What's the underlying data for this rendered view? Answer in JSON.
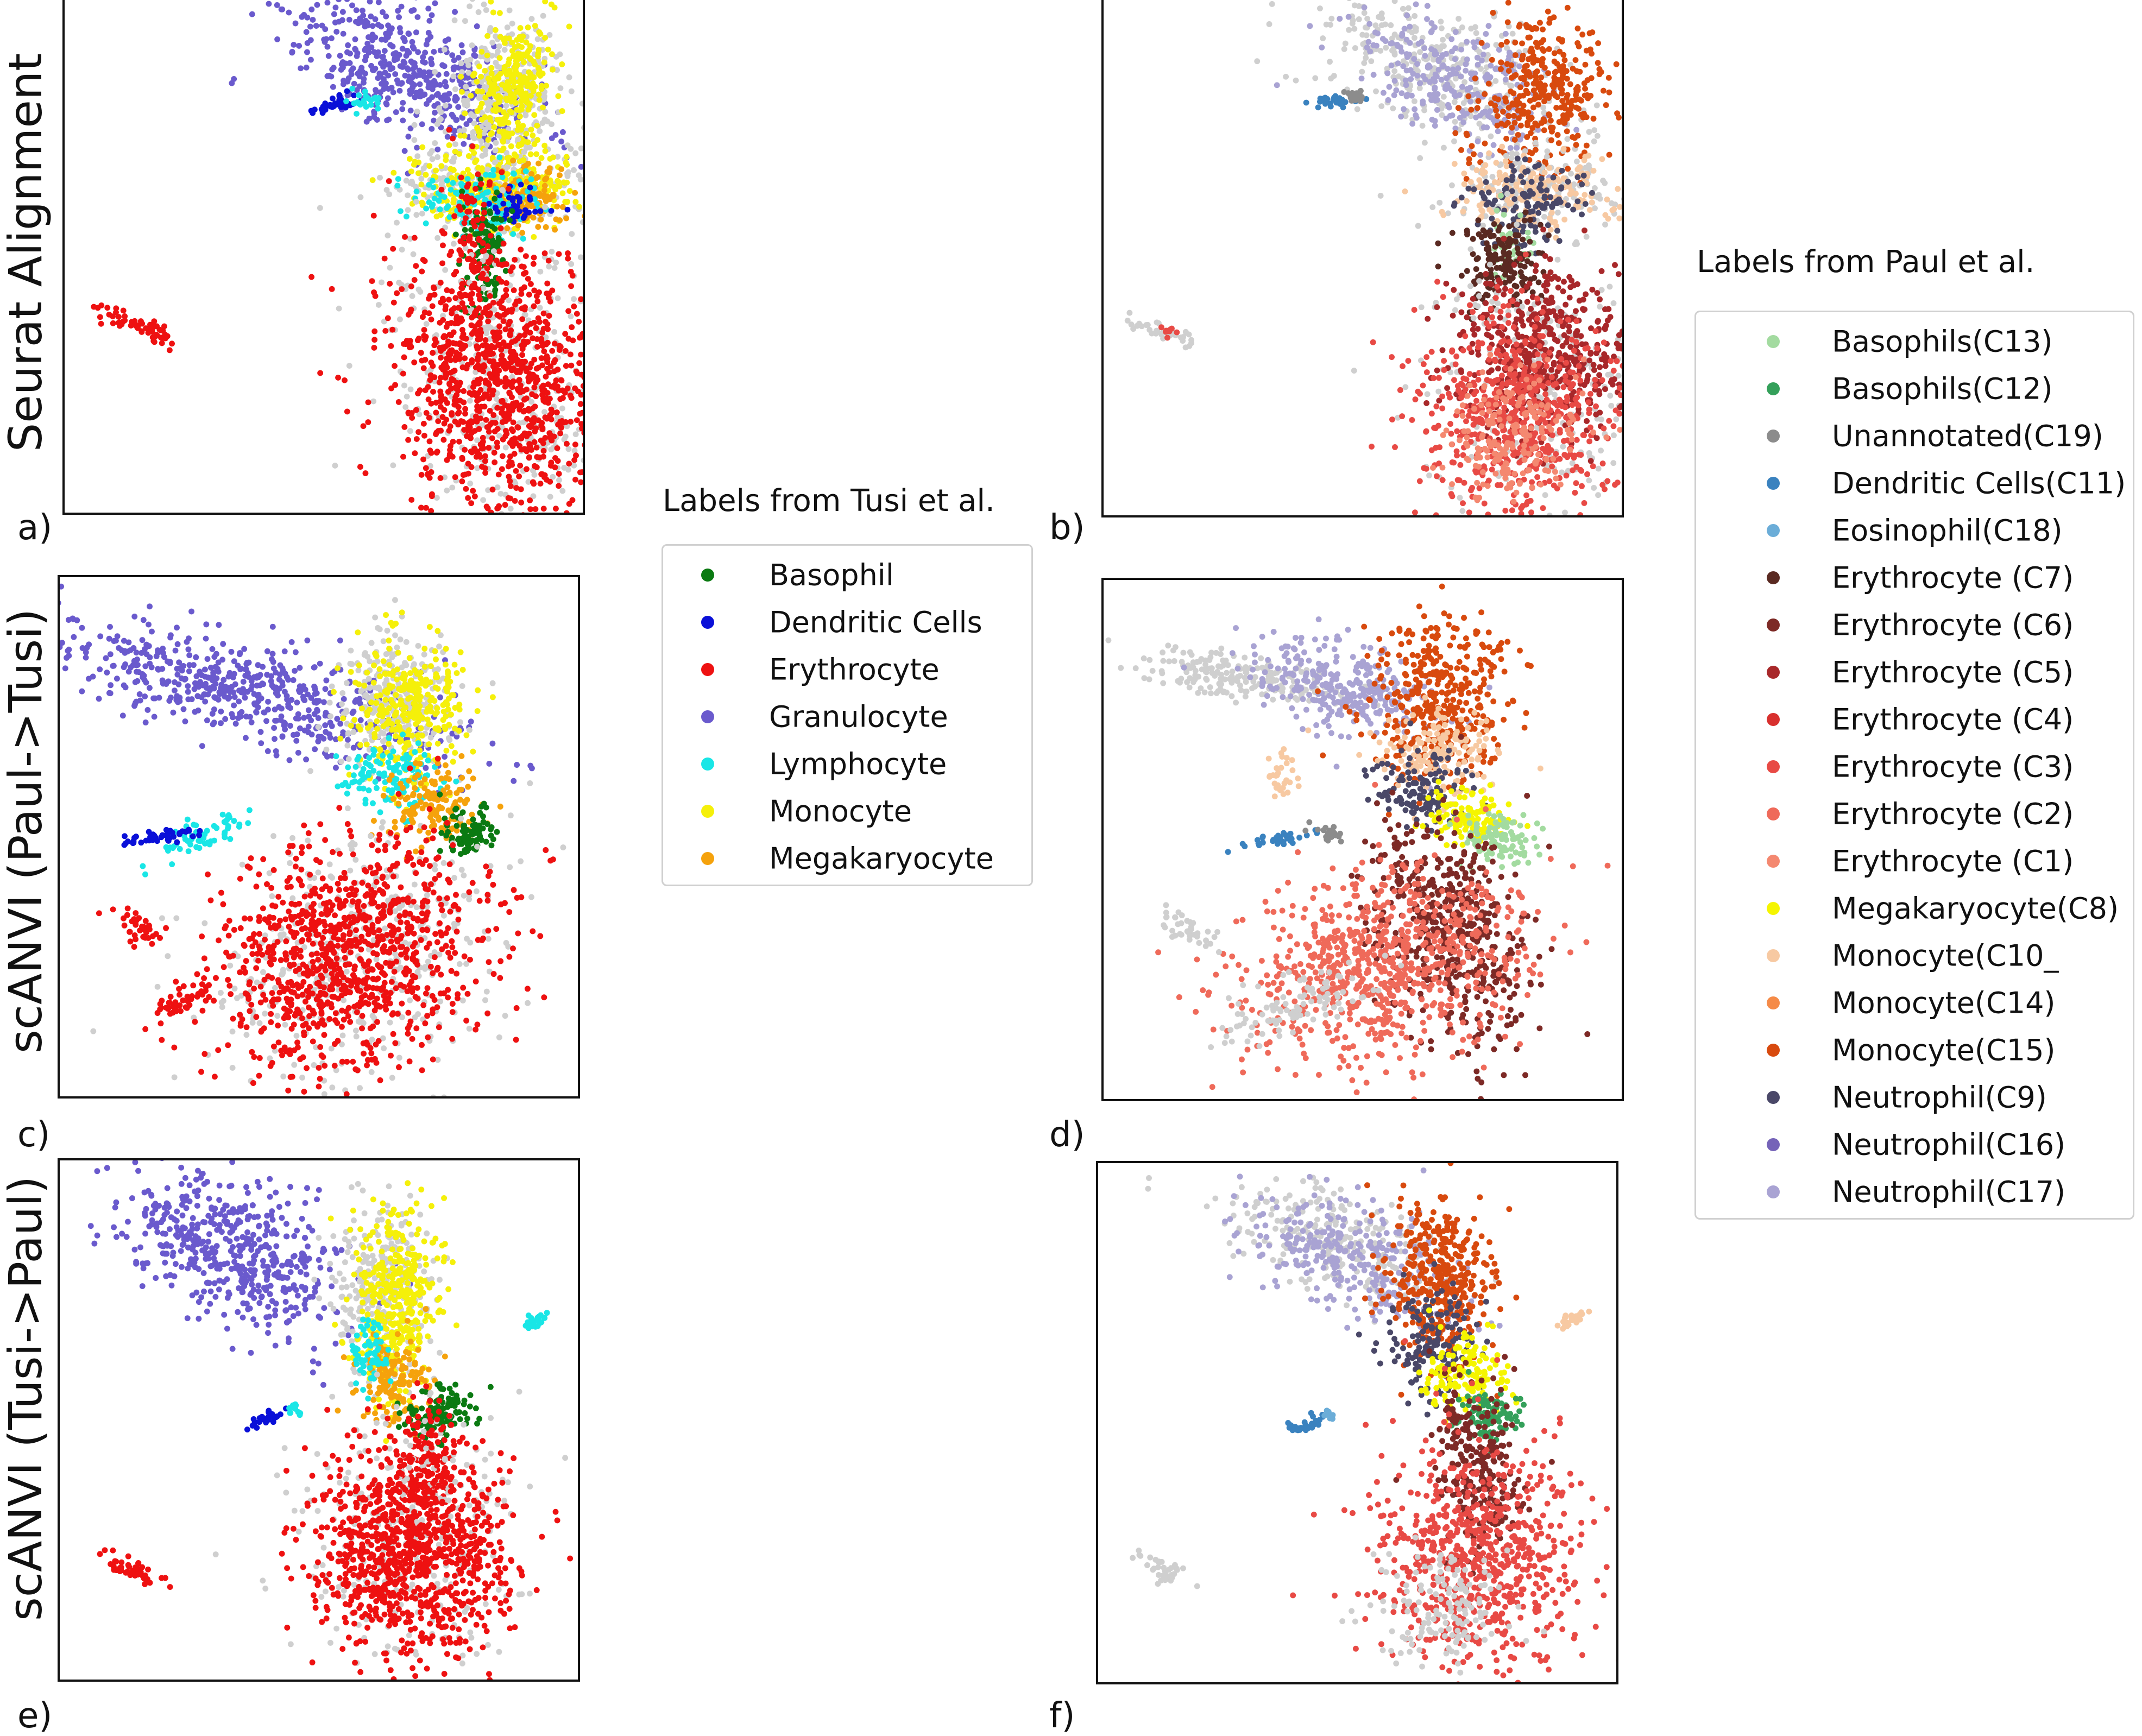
{
  "row_labels": [
    "Seurat Alignment",
    "scANVI (Paul->Tusi)",
    "scANVI (Tusi->Paul)"
  ],
  "panel_letters": [
    "a)",
    "b)",
    "c)",
    "d)",
    "e)",
    "f)"
  ],
  "legend_tusi": {
    "title": "Labels from Tusi et al.",
    "items": [
      {
        "label": "Basophil",
        "color": "#0b7a12"
      },
      {
        "label": "Dendritic Cells",
        "color": "#0a10d8"
      },
      {
        "label": "Erythrocyte",
        "color": "#ee1111"
      },
      {
        "label": "Granulocyte",
        "color": "#6a5acd"
      },
      {
        "label": "Lymphocyte",
        "color": "#19e6e6"
      },
      {
        "label": "Monocyte",
        "color": "#f5f00a"
      },
      {
        "label": "Megakaryocyte",
        "color": "#f5a20c"
      }
    ]
  },
  "legend_paul": {
    "title": "Labels from Paul et al.",
    "items": [
      {
        "label": "Basophils(C13)",
        "color": "#a3dba0"
      },
      {
        "label": "Basophils(C12)",
        "color": "#34a05a"
      },
      {
        "label": "Unannotated(C19)",
        "color": "#8c8c8c"
      },
      {
        "label": "Dendritic Cells(C11)",
        "color": "#3a82bf"
      },
      {
        "label": "Eosinophil(C18)",
        "color": "#6badd8"
      },
      {
        "label": "Erythrocyte (C7)",
        "color": "#5a2a22"
      },
      {
        "label": "Erythrocyte (C6)",
        "color": "#7d2a26"
      },
      {
        "label": "Erythrocyte (C5)",
        "color": "#a8282a"
      },
      {
        "label": "Erythrocyte (C4)",
        "color": "#d8302e"
      },
      {
        "label": "Erythrocyte (C3)",
        "color": "#e84a45"
      },
      {
        "label": "Erythrocyte (C2)",
        "color": "#ef6a5a"
      },
      {
        "label": "Erythrocyte (C1)",
        "color": "#f48870"
      },
      {
        "label": "Megakaryocyte(C8)",
        "color": "#f5f500"
      },
      {
        "label": "Monocyte(C10_",
        "color": "#f7c9a2"
      },
      {
        "label": "Monocyte(C14)",
        "color": "#f58b48"
      },
      {
        "label": "Monocyte(C15)",
        "color": "#d84a0e"
      },
      {
        "label": "Neutrophil(C9)",
        "color": "#4a4868"
      },
      {
        "label": "Neutrophil(C16)",
        "color": "#7563b8"
      },
      {
        "label": "Neutrophil(C17)",
        "color": "#a9a3d3"
      }
    ]
  },
  "chart_data": [
    {
      "type": "scatter",
      "panel": "a)",
      "row_label": "Seurat Alignment",
      "legend": "Labels from Tusi et al."
    },
    {
      "type": "scatter",
      "panel": "b)",
      "legend": "Labels from Paul et al."
    },
    {
      "type": "scatter",
      "panel": "c)",
      "row_label": "scANVI (Paul->Tusi)",
      "legend": "Labels from Tusi et al."
    },
    {
      "type": "scatter",
      "panel": "d)",
      "legend": "Labels from Paul et al."
    },
    {
      "type": "scatter",
      "panel": "e)",
      "row_label": "scANVI (Tusi->Paul)",
      "legend": "Labels from Tusi et al."
    },
    {
      "type": "scatter",
      "panel": "f)",
      "legend": "Labels from Paul et al."
    }
  ]
}
